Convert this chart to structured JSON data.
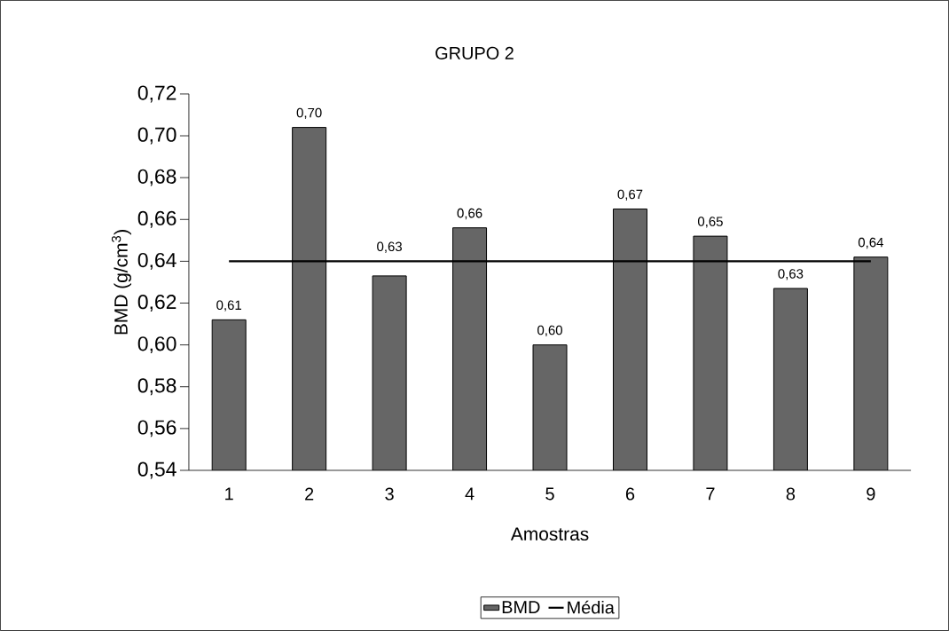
{
  "chart_data": {
    "type": "bar",
    "title": "GRUPO 2",
    "xlabel": "Amostras",
    "ylabel": "BMD (g/cm$^{3}$)",
    "categories": [
      "1",
      "2",
      "3",
      "4",
      "5",
      "6",
      "7",
      "8",
      "9"
    ],
    "series": [
      {
        "name": "BMD",
        "color": "#666666",
        "values": [
          0.612,
          0.704,
          0.633,
          0.656,
          0.6,
          0.665,
          0.652,
          0.627,
          0.642
        ],
        "value_labels": [
          "0,61",
          "0,70",
          "0,63",
          "0,66",
          "0,60",
          "0,67",
          "0,65",
          "0,63",
          "0,64"
        ]
      },
      {
        "name": "Média",
        "type": "line",
        "color": "#000000",
        "values": [
          0.64,
          0.64,
          0.64,
          0.64,
          0.64,
          0.64,
          0.64,
          0.64,
          0.64
        ]
      }
    ],
    "ylim": [
      0.54,
      0.72
    ],
    "yticks": [
      {
        "value": 0.54,
        "label": "0,54"
      },
      {
        "value": 0.56,
        "label": "0,56"
      },
      {
        "value": 0.58,
        "label": "0,58"
      },
      {
        "value": 0.6,
        "label": "0,60"
      },
      {
        "value": 0.62,
        "label": "0,62"
      },
      {
        "value": 0.64,
        "label": "0,64"
      },
      {
        "value": 0.66,
        "label": "0,66"
      },
      {
        "value": 0.68,
        "label": "0,68"
      },
      {
        "value": 0.7,
        "label": "0,70"
      },
      {
        "value": 0.72,
        "label": "0,72"
      }
    ],
    "legend": "bottom",
    "grid": false,
    "marker": "none"
  }
}
